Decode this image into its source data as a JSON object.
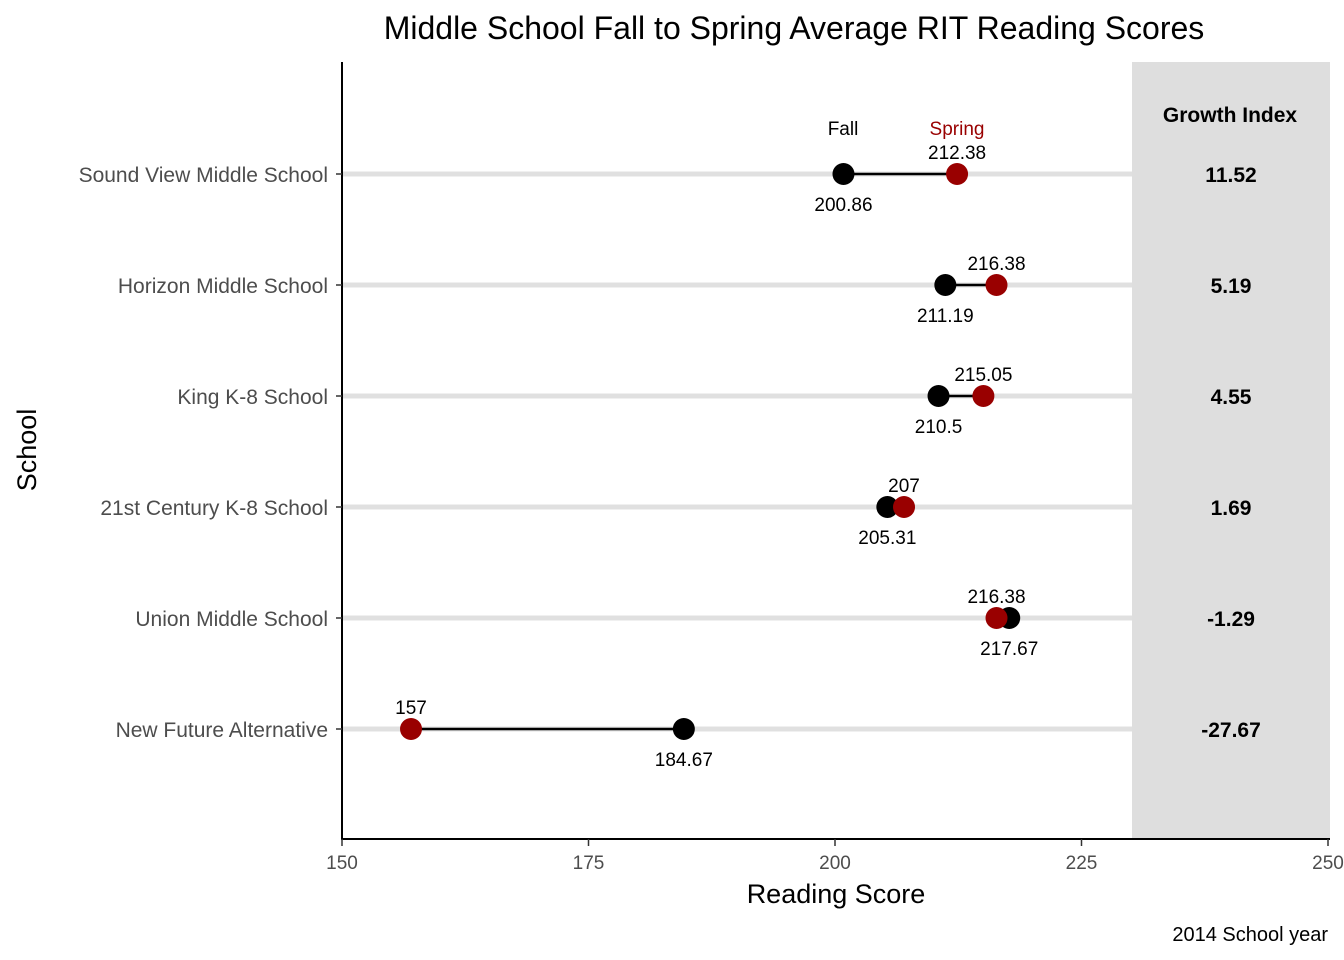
{
  "chart_data": {
    "type": "dumbbell",
    "title": "Middle School Fall to Spring Average RIT Reading Scores",
    "xlabel": "Reading Score",
    "ylabel": "School",
    "caption": "2014 School year",
    "xlim": [
      150,
      250
    ],
    "x_ticks": [
      150,
      175,
      200,
      225,
      250
    ],
    "grid": false,
    "series": [
      {
        "name": "Fall",
        "color": "#000000"
      },
      {
        "name": "Spring",
        "color": "#990000"
      }
    ],
    "growth_header": "Growth Index",
    "rows": [
      {
        "school": "Sound View Middle School",
        "fall": 200.86,
        "spring": 212.38,
        "fall_label": "200.86",
        "spring_label": "212.38",
        "growth": "11.52"
      },
      {
        "school": "Horizon Middle School",
        "fall": 211.19,
        "spring": 216.38,
        "fall_label": "211.19",
        "spring_label": "216.38",
        "growth": "5.19"
      },
      {
        "school": "King K-8 School",
        "fall": 210.5,
        "spring": 215.05,
        "fall_label": "210.5",
        "spring_label": "215.05",
        "growth": "4.55"
      },
      {
        "school": "21st Century K-8 School",
        "fall": 205.31,
        "spring": 207,
        "fall_label": "205.31",
        "spring_label": "207",
        "growth": "1.69"
      },
      {
        "school": "Union Middle School",
        "fall": 217.67,
        "spring": 216.38,
        "fall_label": "217.67",
        "spring_label": "216.38",
        "growth": "-1.29"
      },
      {
        "school": "New Future Alternative",
        "fall": 184.67,
        "spring": 157,
        "fall_label": "184.67",
        "spring_label": "157",
        "growth": "-27.67"
      }
    ]
  }
}
